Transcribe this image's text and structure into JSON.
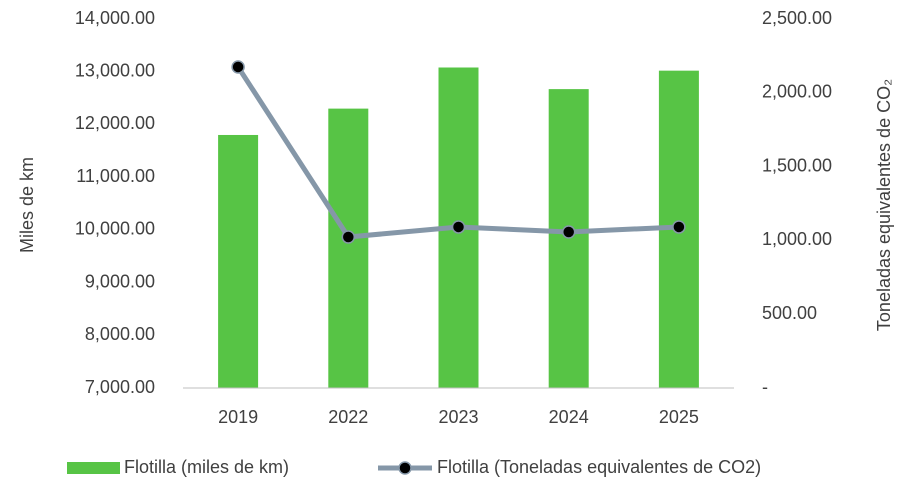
{
  "chart_data": {
    "type": "bar-line",
    "categories": [
      "2019",
      "2022",
      "2023",
      "2024",
      "2025"
    ],
    "series": [
      {
        "name": "Flotilla (miles de km)",
        "type": "bar",
        "color": "#57c445",
        "axis": "y",
        "values": [
          11800,
          12300,
          13080,
          12670,
          13020
        ]
      },
      {
        "name": "Flotilla (Toneladas equivalentes de CO2)",
        "type": "line",
        "color": "#8597a8",
        "marker_color": "#000000",
        "axis": "y2",
        "values": [
          2175,
          1023,
          1091,
          1057,
          1091
        ]
      }
    ],
    "ylabel": "Miles de km",
    "y2label": "Toneladas equivalentes de CO₂",
    "ylim": [
      7000,
      14000
    ],
    "yticks": [
      {
        "value": 7000,
        "label": "7,000.00"
      },
      {
        "value": 8000,
        "label": "8,000.00"
      },
      {
        "value": 9000,
        "label": "9,000.00"
      },
      {
        "value": 10000,
        "label": "10,000.00"
      },
      {
        "value": 11000,
        "label": "11,000.00"
      },
      {
        "value": 12000,
        "label": "12,000.00"
      },
      {
        "value": 13000,
        "label": "13,000.00"
      },
      {
        "value": 14000,
        "label": "14,000.00"
      }
    ],
    "y2lim": [
      0,
      2500
    ],
    "y2ticks": [
      {
        "value": 0,
        "label": "-"
      },
      {
        "value": 500,
        "label": "500.00"
      },
      {
        "value": 1000,
        "label": "1,000.00"
      },
      {
        "value": 1500,
        "label": "1,500.00"
      },
      {
        "value": 2000,
        "label": "2,000.00"
      },
      {
        "value": 2500,
        "label": "2,500.00"
      }
    ],
    "grid": false,
    "legend": "bottom"
  }
}
